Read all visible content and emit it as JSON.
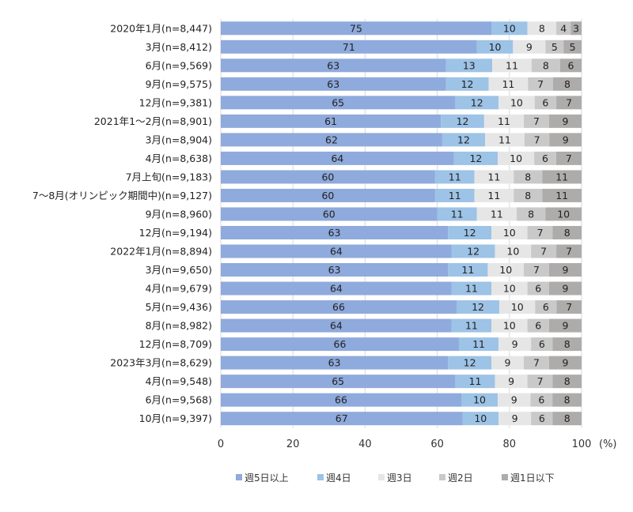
{
  "chart_data": {
    "type": "bar",
    "orientation": "horizontal",
    "stacked": "percent",
    "categories": [
      "2020年1月(n=8,447)",
      "3月(n=8,412)",
      "6月(n=9,569)",
      "9月(n=9,575)",
      "12月(n=9,381)",
      "2021年1～2月(n=8,901)",
      "3月(n=8,904)",
      "4月(n=8,638)",
      "7月上旬(n=9,183)",
      "7～8月(オリンピック期間中)(n=9,127)",
      "9月(n=8,960)",
      "12月(n=9,194)",
      "2022年1月(n=8,894)",
      "3月(n=9,650)",
      "4月(n=9,679)",
      "5月(n=9,436)",
      "8月(n=8,982)",
      "12月(n=8,709)",
      "2023年3月(n=8,629)",
      "4月(n=9,548)",
      "6月(n=9,568)",
      "10月(n=9,397)"
    ],
    "series": [
      {
        "name": "週5日以上",
        "color": "#8faadc",
        "values": [
          75,
          71,
          63,
          63,
          65,
          61,
          62,
          64,
          60,
          60,
          60,
          63,
          64,
          63,
          64,
          66,
          64,
          66,
          63,
          65,
          66,
          67
        ]
      },
      {
        "name": "週4日",
        "color": "#9dc3e6",
        "values": [
          10,
          10,
          13,
          12,
          12,
          12,
          12,
          12,
          11,
          11,
          11,
          12,
          12,
          11,
          11,
          12,
          11,
          11,
          12,
          11,
          10,
          10
        ]
      },
      {
        "name": "週3日",
        "color": "#e7e6e6",
        "values": [
          8,
          9,
          11,
          11,
          10,
          11,
          11,
          10,
          11,
          11,
          11,
          10,
          10,
          10,
          10,
          10,
          10,
          9,
          9,
          9,
          9,
          9
        ]
      },
      {
        "name": "週2日",
        "color": "#c9c9c9",
        "values": [
          4,
          5,
          8,
          7,
          6,
          7,
          7,
          6,
          8,
          8,
          8,
          7,
          7,
          7,
          6,
          6,
          6,
          6,
          7,
          7,
          6,
          6
        ]
      },
      {
        "name": "週1日以下",
        "color": "#aeabab",
        "values": [
          3,
          5,
          6,
          8,
          7,
          9,
          9,
          7,
          11,
          11,
          10,
          8,
          7,
          9,
          9,
          7,
          9,
          8,
          9,
          8,
          8,
          8
        ]
      }
    ],
    "xlim": [
      0,
      100
    ],
    "xticks": [
      "0",
      "20",
      "40",
      "60",
      "80",
      "100"
    ],
    "xunit": "(%)",
    "grid": true,
    "legend_position": "bottom"
  }
}
